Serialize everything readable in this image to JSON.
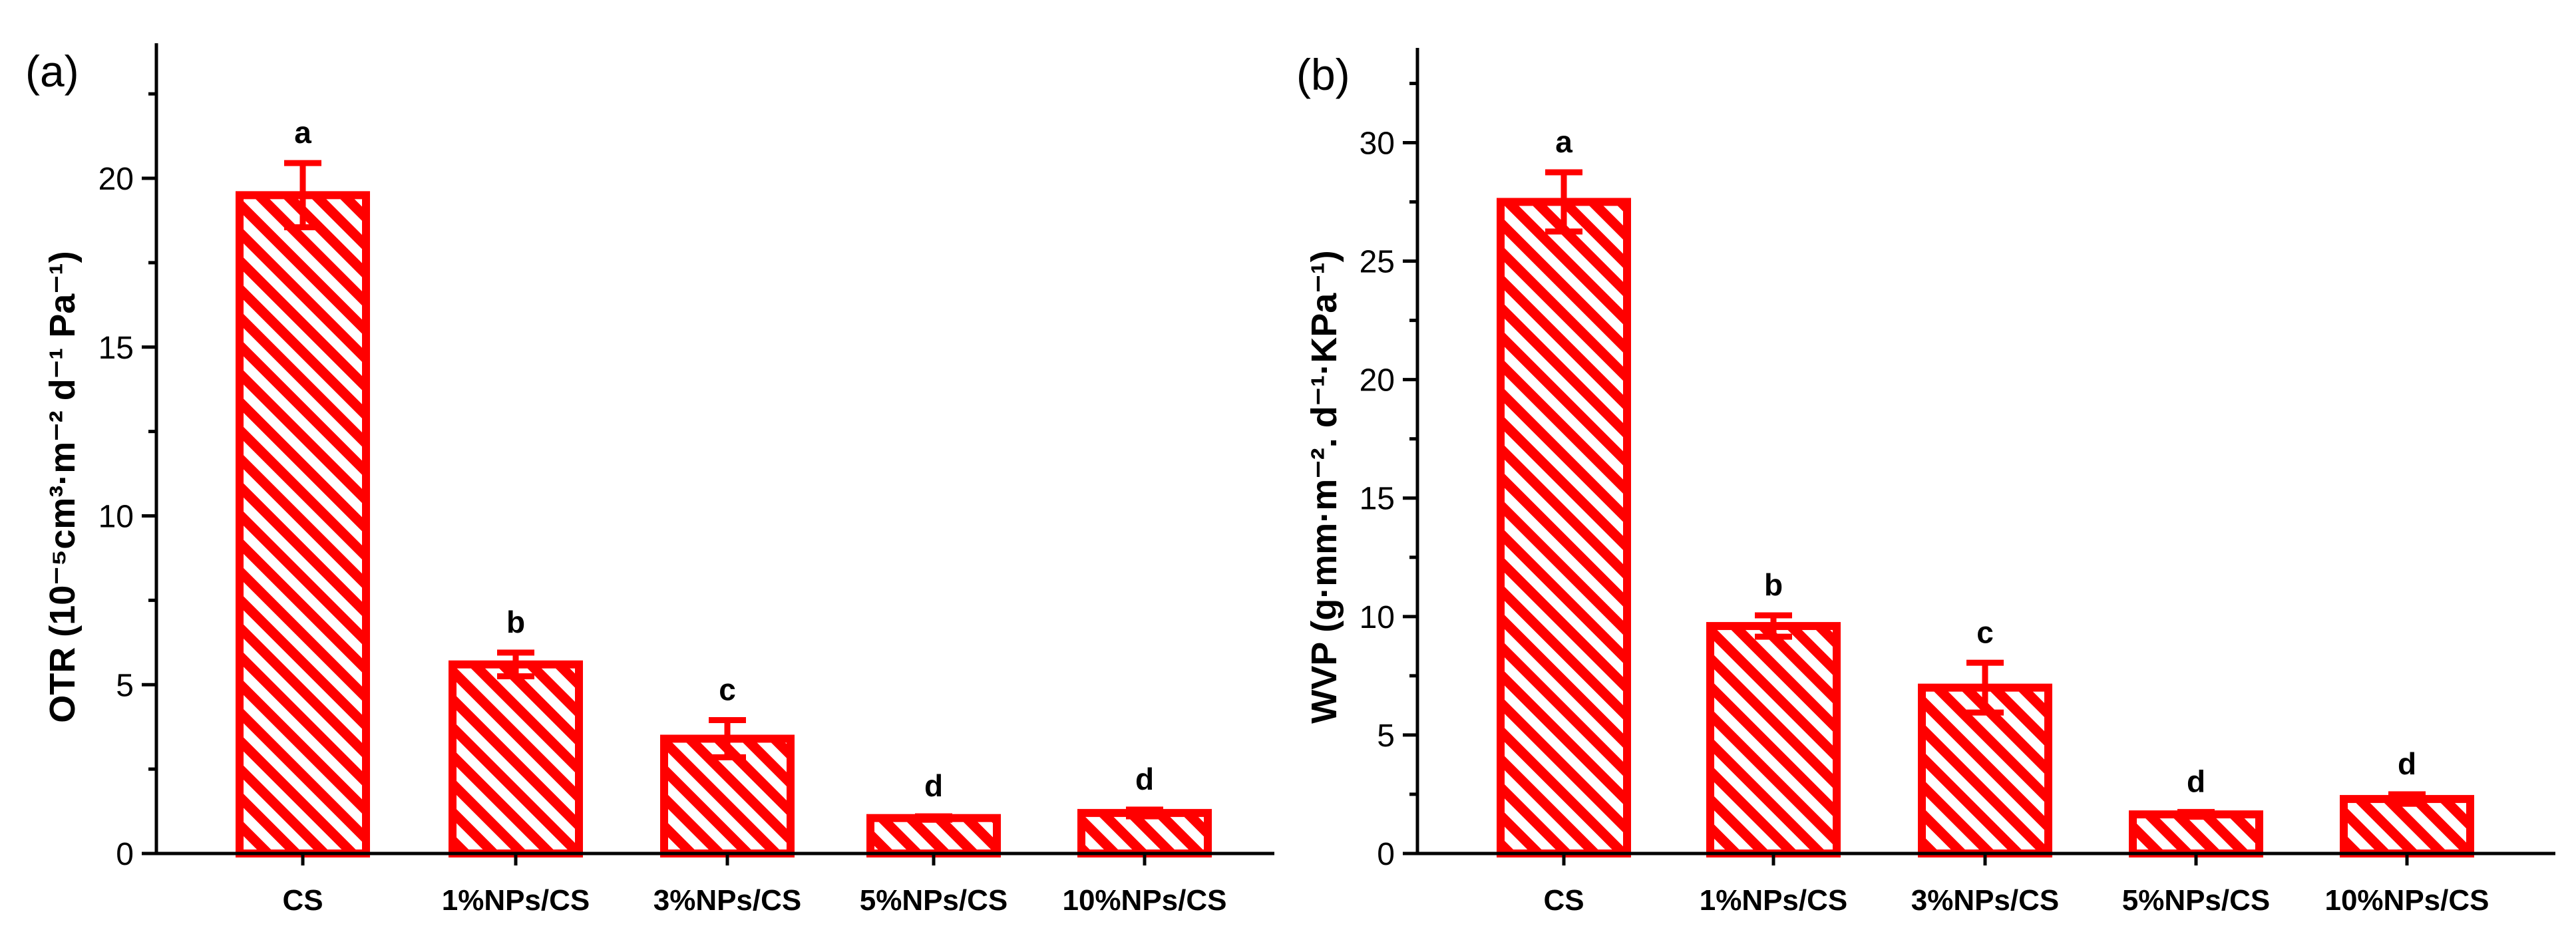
{
  "colors": {
    "bar": "#ff0000",
    "hatch_bg": "#ffffff",
    "axis": "#000000"
  },
  "chart_data": [
    {
      "type": "bar",
      "panel_label": "(a)",
      "ylabel": "OTR (10⁻⁵cm³·m⁻² d⁻¹ Pa⁻¹)",
      "xlabel": "",
      "categories": [
        "CS",
        "1%NPs/CS",
        "3%NPs/CS",
        "5%NPs/CS",
        "10%NPs/CS"
      ],
      "values": [
        19.5,
        5.6,
        3.4,
        1.05,
        1.2
      ],
      "errors": [
        0.95,
        0.35,
        0.55,
        0.05,
        0.1
      ],
      "significance": [
        "a",
        "b",
        "c",
        "d",
        "d"
      ],
      "ylim": [
        0,
        24
      ],
      "yticks": [
        0,
        5,
        10,
        15,
        20
      ],
      "ytick_labels": [
        "0",
        "5",
        "10",
        "15",
        "20"
      ],
      "minor_tick_step": 2.5,
      "grid": false,
      "bar_style": "red outline with diagonal white hatching"
    },
    {
      "type": "bar",
      "panel_label": "(b)",
      "ylabel": "WVP (g·mm·m⁻². d⁻¹·KPa⁻¹)",
      "xlabel": "",
      "categories": [
        "CS",
        "1%NPs/CS",
        "3%NPs/CS",
        "5%NPs/CS",
        "10%NPs/CS"
      ],
      "values": [
        27.5,
        9.6,
        7.0,
        1.65,
        2.3
      ],
      "errors": [
        1.25,
        0.45,
        1.05,
        0.1,
        0.2
      ],
      "significance": [
        "a",
        "b",
        "c",
        "d",
        "d"
      ],
      "ylim": [
        0,
        34
      ],
      "yticks": [
        0,
        5,
        10,
        15,
        20,
        25,
        30
      ],
      "ytick_labels": [
        "0",
        "5",
        "10",
        "15",
        "20",
        "25",
        "30"
      ],
      "minor_tick_step": 2.5,
      "grid": false,
      "bar_style": "red outline with diagonal white hatching"
    }
  ]
}
